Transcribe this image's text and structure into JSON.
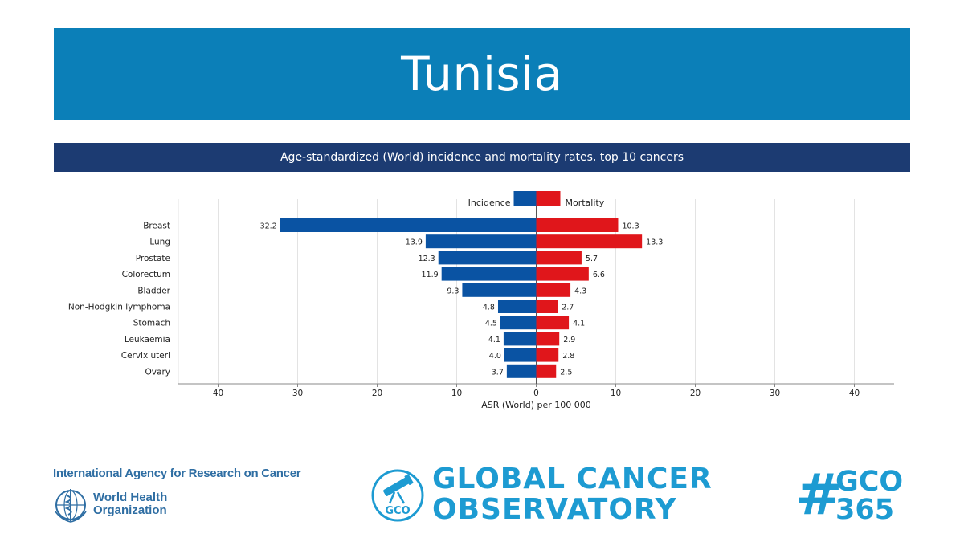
{
  "header": {
    "title": "Tunisia",
    "subtitle": "Age-standardized (World) incidence and mortality rates, top 10 cancers"
  },
  "chart_data": {
    "type": "bar",
    "orientation": "horizontal-butterfly",
    "categories": [
      "Breast",
      "Lung",
      "Prostate",
      "Colorectum",
      "Bladder",
      "Non-Hodgkin lymphoma",
      "Stomach",
      "Leukaemia",
      "Cervix uteri",
      "Ovary"
    ],
    "series": [
      {
        "name": "Incidence",
        "color": "#0a53a3",
        "side": "left",
        "values": [
          32.2,
          13.9,
          12.3,
          11.9,
          9.3,
          4.8,
          4.5,
          4.1,
          4.0,
          3.7
        ]
      },
      {
        "name": "Mortality",
        "color": "#e0161b",
        "side": "right",
        "values": [
          10.3,
          13.3,
          5.7,
          6.6,
          4.3,
          2.7,
          4.1,
          2.9,
          2.8,
          2.5
        ]
      }
    ],
    "value_labels": {
      "Incidence": [
        "32.2",
        "13.9",
        "12.3",
        "11.9",
        "9.3",
        "4.8",
        "4.5",
        "4.1",
        "4.0",
        "3.7"
      ],
      "Mortality": [
        "10.3",
        "13.3",
        "5.7",
        "6.6",
        "4.3",
        "2.7",
        "4.1",
        "2.9",
        "2.8",
        "2.5"
      ]
    },
    "xlabel": "ASR (World) per 100 000",
    "xlim": [
      -45,
      45
    ],
    "x_ticks": [
      -40,
      -30,
      -20,
      -10,
      0,
      10,
      20,
      30,
      40
    ],
    "x_tick_labels": [
      "40",
      "30",
      "20",
      "10",
      "0",
      "10",
      "20",
      "30",
      "40"
    ],
    "grid": true,
    "legend_position": "top-center"
  },
  "footer": {
    "iarc_name": "International Agency for Research on Cancer",
    "who_line1": "World Health",
    "who_line2": "Organization",
    "gco_line1": "GLOBAL CANCER",
    "gco_line2": "OBSERVATORY",
    "gco_badge": "GCO",
    "hashtag_symbol": "#",
    "hashtag_line1": "GCO",
    "hashtag_line2": "365"
  }
}
